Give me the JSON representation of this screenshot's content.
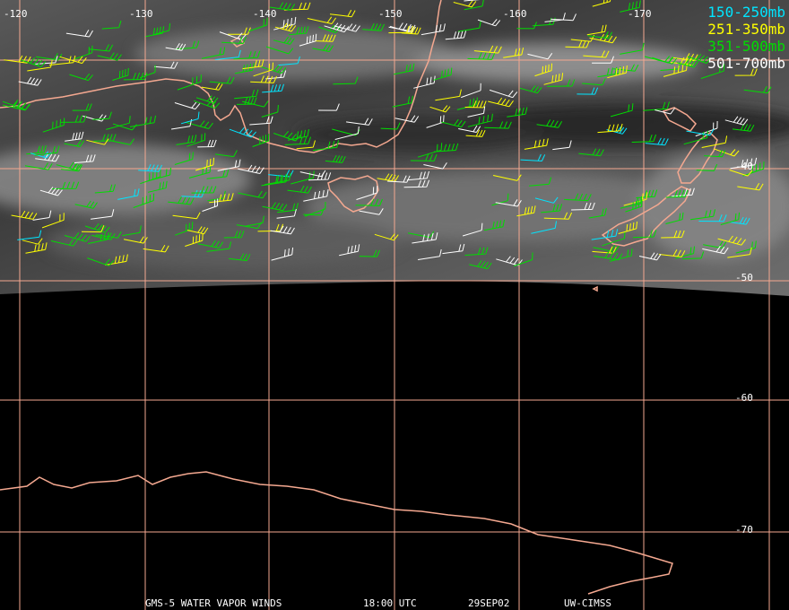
{
  "map": {
    "colors": {
      "grid": "#f4a890",
      "coast": "#f4a890",
      "wv_light": "#9a9a9a",
      "wv_dark": "#202020"
    },
    "longitude_labels": [
      "-120",
      "-130",
      "-140",
      "-150",
      "-160",
      "-170"
    ],
    "latitude_labels": [
      "-40",
      "-50",
      "-60",
      "-70"
    ]
  },
  "legend": [
    {
      "label": "150-250mb",
      "color": "#00e5ff"
    },
    {
      "label": "251-350mb",
      "color": "#ffff00"
    },
    {
      "label": "351-500mb",
      "color": "#00dd00"
    },
    {
      "label": "501-700mb",
      "color": "#ffffff"
    }
  ],
  "footer": {
    "satellite": "GMS-5 WATER VAPOR WINDS",
    "time": "18:00 UTC",
    "date": "29SEP02",
    "source": "UW-CIMSS"
  }
}
